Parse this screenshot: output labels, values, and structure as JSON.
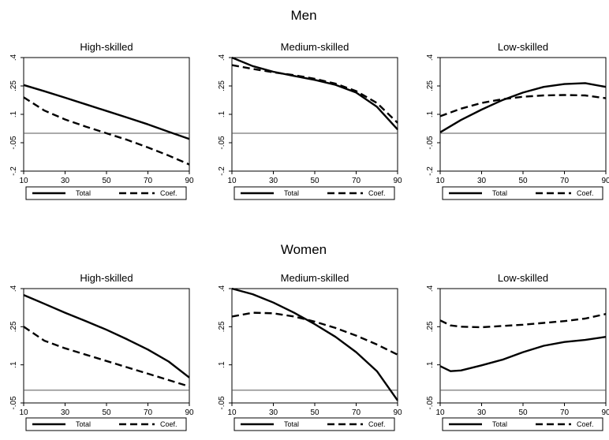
{
  "chart_data": [
    {
      "type": "line",
      "group": "Men",
      "title": "High-skilled",
      "xlim": [
        10,
        90
      ],
      "ylim": [
        -0.2,
        0.4
      ],
      "xticks": [
        "10",
        "30",
        "50",
        "70",
        "90"
      ],
      "yticks": [
        ".4",
        ".25",
        ".1",
        "-.05",
        "-.2"
      ],
      "x": [
        10,
        20,
        30,
        40,
        50,
        60,
        70,
        80,
        90
      ],
      "series": [
        {
          "name": "Total",
          "style": "solid",
          "values": [
            0.255,
            0.222,
            0.188,
            0.153,
            0.118,
            0.083,
            0.047,
            0.008,
            -0.03
          ]
        },
        {
          "name": "Coef.",
          "style": "dashed",
          "values": [
            0.19,
            0.12,
            0.073,
            0.035,
            0.0,
            -0.035,
            -0.075,
            -0.118,
            -0.165
          ]
        }
      ],
      "legend": [
        "Total",
        "Coef."
      ]
    },
    {
      "type": "line",
      "group": "Men",
      "title": "Medium-skilled",
      "xlim": [
        10,
        90
      ],
      "ylim": [
        -0.2,
        0.4
      ],
      "xticks": [
        "10",
        "30",
        "50",
        "70",
        "90"
      ],
      "yticks": [
        ".4",
        ".25",
        ".1",
        "-.05",
        "-.2"
      ],
      "x": [
        10,
        20,
        30,
        40,
        50,
        60,
        70,
        80,
        90
      ],
      "series": [
        {
          "name": "Total",
          "style": "solid",
          "values": [
            0.4,
            0.355,
            0.325,
            0.303,
            0.282,
            0.256,
            0.215,
            0.14,
            0.02
          ]
        },
        {
          "name": "Coef.",
          "style": "dashed",
          "values": [
            0.36,
            0.34,
            0.322,
            0.307,
            0.288,
            0.262,
            0.223,
            0.16,
            0.055
          ]
        }
      ],
      "legend": [
        "Total",
        "Coef."
      ]
    },
    {
      "type": "line",
      "group": "Men",
      "title": "Low-skilled",
      "xlim": [
        10,
        90
      ],
      "ylim": [
        -0.2,
        0.4
      ],
      "xticks": [
        "10",
        "30",
        "50",
        "70",
        "90"
      ],
      "yticks": [
        ".4",
        ".25",
        ".1",
        "-.05",
        "-.2"
      ],
      "x": [
        10,
        20,
        30,
        40,
        50,
        60,
        70,
        80,
        90
      ],
      "series": [
        {
          "name": "Total",
          "style": "solid",
          "values": [
            0.005,
            0.07,
            0.125,
            0.175,
            0.215,
            0.245,
            0.26,
            0.265,
            0.245
          ]
        },
        {
          "name": "Coef.",
          "style": "dashed",
          "values": [
            0.09,
            0.13,
            0.16,
            0.18,
            0.193,
            0.2,
            0.202,
            0.2,
            0.185
          ]
        }
      ],
      "legend": [
        "Total",
        "Coef."
      ]
    },
    {
      "type": "line",
      "group": "Women",
      "title": "High-skilled",
      "xlim": [
        10,
        90
      ],
      "ylim": [
        -0.05,
        0.4
      ],
      "xticks": [
        "10",
        "30",
        "50",
        "70",
        "90"
      ],
      "yticks": [
        ".4",
        ".25",
        ".1",
        "-.05"
      ],
      "x": [
        10,
        20,
        30,
        40,
        50,
        60,
        70,
        80,
        90
      ],
      "series": [
        {
          "name": "Total",
          "style": "solid",
          "values": [
            0.375,
            0.34,
            0.305,
            0.272,
            0.238,
            0.2,
            0.16,
            0.113,
            0.05
          ]
        },
        {
          "name": "Coef.",
          "style": "dashed",
          "values": [
            0.25,
            0.195,
            0.165,
            0.14,
            0.115,
            0.09,
            0.065,
            0.04,
            0.015
          ]
        }
      ],
      "legend": [
        "Total",
        "Coef."
      ]
    },
    {
      "type": "line",
      "group": "Women",
      "title": "Medium-skilled",
      "xlim": [
        10,
        90
      ],
      "ylim": [
        -0.05,
        0.4
      ],
      "xticks": [
        "10",
        "30",
        "50",
        "70",
        "90"
      ],
      "yticks": [
        ".4",
        ".25",
        ".1",
        "-.05"
      ],
      "x": [
        10,
        20,
        30,
        40,
        50,
        60,
        70,
        80,
        90
      ],
      "series": [
        {
          "name": "Total",
          "style": "solid",
          "values": [
            0.4,
            0.378,
            0.345,
            0.305,
            0.26,
            0.21,
            0.15,
            0.075,
            -0.04
          ]
        },
        {
          "name": "Coef.",
          "style": "dashed",
          "values": [
            0.29,
            0.305,
            0.303,
            0.29,
            0.27,
            0.245,
            0.215,
            0.18,
            0.14
          ]
        }
      ],
      "legend": [
        "Total",
        "Coef."
      ]
    },
    {
      "type": "line",
      "group": "Women",
      "title": "Low-skilled",
      "xlim": [
        10,
        90
      ],
      "ylim": [
        -0.05,
        0.4
      ],
      "xticks": [
        "10",
        "30",
        "50",
        "70",
        "90"
      ],
      "yticks": [
        ".4",
        ".25",
        ".1",
        "-.05"
      ],
      "x": [
        10,
        15,
        20,
        30,
        40,
        50,
        60,
        70,
        80,
        90
      ],
      "series": [
        {
          "name": "Total",
          "style": "solid",
          "values": [
            0.095,
            0.075,
            0.078,
            0.098,
            0.12,
            0.15,
            0.175,
            0.19,
            0.198,
            0.21
          ]
        },
        {
          "name": "Coef.",
          "style": "dashed",
          "values": [
            0.275,
            0.255,
            0.25,
            0.248,
            0.253,
            0.258,
            0.265,
            0.272,
            0.282,
            0.3
          ]
        }
      ],
      "legend": [
        "Total",
        "Coef."
      ]
    }
  ],
  "groups": {
    "men": "Men",
    "women": "Women"
  }
}
